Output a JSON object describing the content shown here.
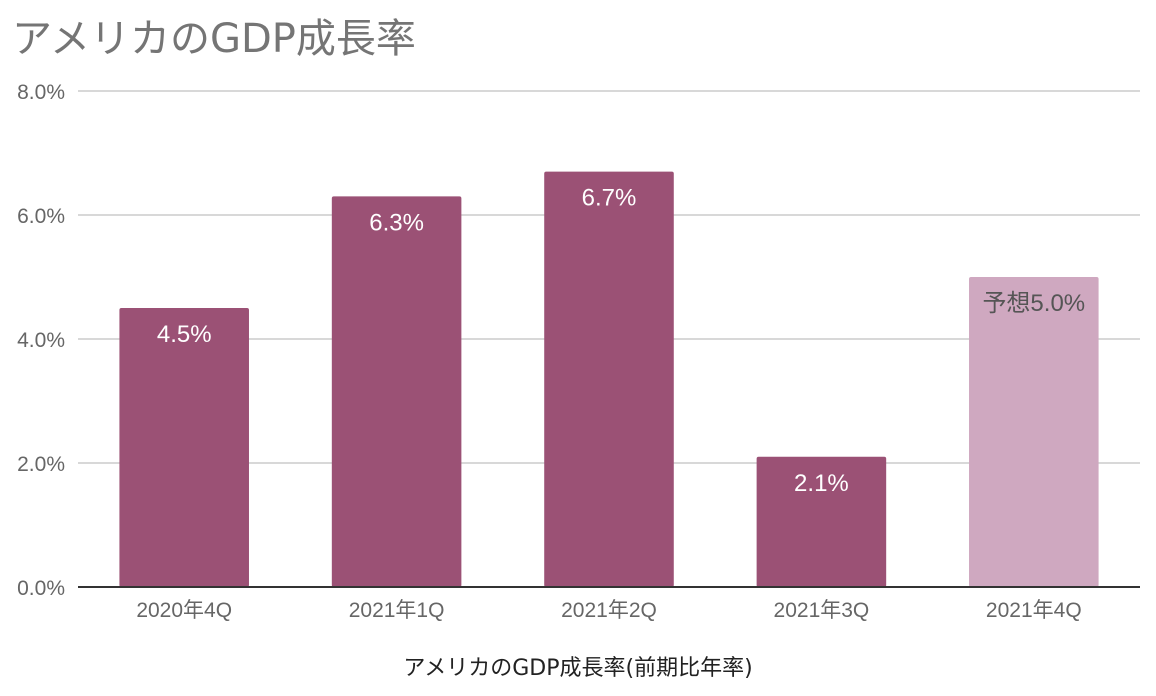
{
  "chart_data": {
    "type": "bar",
    "title": "アメリカのGDP成長率",
    "xlabel": "アメリカのGDP成長率(前期比年率)",
    "ylabel": "",
    "categories": [
      "2020年4Q",
      "2021年1Q",
      "2021年2Q",
      "2021年3Q",
      "2021年4Q"
    ],
    "values": [
      4.5,
      6.3,
      6.7,
      2.1,
      5.0
    ],
    "data_labels": [
      "4.5%",
      "6.3%",
      "6.7%",
      "2.1%",
      "予想5.0%"
    ],
    "ylim": [
      0,
      8
    ],
    "yticks": [
      "0.0%",
      "2.0%",
      "4.0%",
      "6.0%",
      "8.0%"
    ],
    "grid": true,
    "legend": "none",
    "colors": {
      "actual": "#9b5175",
      "forecast": "#cfa8c0",
      "actual_label": "#ffffff",
      "forecast_label": "#555555",
      "grid": "#cccccc",
      "axis": "#333333",
      "tick_label": "#666666"
    },
    "forecast_index": 4
  }
}
